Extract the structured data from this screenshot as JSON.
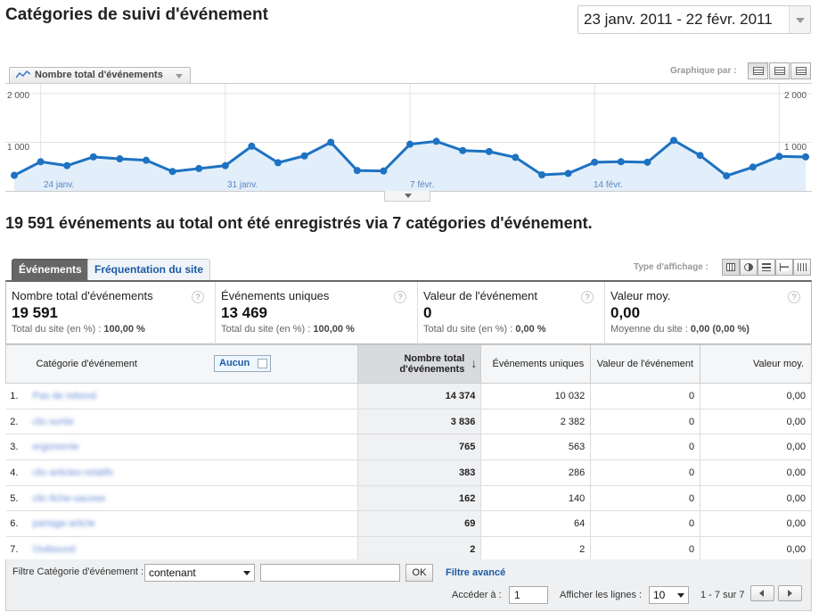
{
  "page": {
    "title": "Catégories de suivi d'événement",
    "date_range": "23 janv. 2011 - 22 févr. 2011"
  },
  "graph": {
    "metric_select": "Nombre total d'événements",
    "graph_by_label": "Graphique par :",
    "y_label_top_left": "2 000",
    "y_label_mid_left": "1 000",
    "y_label_top_right": "2 000",
    "y_label_mid_right": "1 000",
    "x_labels": [
      "24 janv.",
      "31 janv.",
      "7 févr.",
      "14 févr."
    ]
  },
  "chart_data": {
    "type": "area",
    "ylim": [
      0,
      2000
    ],
    "gridlines": [
      1000,
      2000
    ],
    "x_tick_labels": [
      "24 janv.",
      "31 janv.",
      "7 févr.",
      "14 févr."
    ],
    "values": [
      320,
      600,
      520,
      700,
      660,
      630,
      400,
      460,
      520,
      920,
      580,
      720,
      1000,
      420,
      410,
      960,
      1020,
      830,
      810,
      690,
      330,
      360,
      590,
      600,
      590,
      1040,
      730,
      310,
      490,
      710,
      700
    ],
    "color": "#1d72c2",
    "fill": "#e2eef9"
  },
  "summary_text": "19 591 événements au total ont été enregistrés via 7 catégories d'événement.",
  "tabs": [
    {
      "label": "Événements"
    },
    {
      "label": "Fréquentation du site"
    }
  ],
  "display_type_label": "Type d'affichage :",
  "metrics": [
    {
      "label": "Nombre total d'événements",
      "value": "19 591",
      "sub_label": "Total du site (en %) :",
      "sub_value": "100,00 %"
    },
    {
      "label": "Événements uniques",
      "value": "13 469",
      "sub_label": "Total du site (en %) :",
      "sub_value": "100,00 %"
    },
    {
      "label": "Valeur de l'événement",
      "value": "0",
      "sub_label": "Total du site (en %) :",
      "sub_value": "0,00 %"
    },
    {
      "label": "Valeur moy.",
      "value": "0,00",
      "sub_label": "Moyenne du site :",
      "sub_value": "0,00 (0,00 %)"
    }
  ],
  "table": {
    "headers": {
      "category": "Catégorie d'événement",
      "secondary": "Aucun",
      "total": "Nombre total d'événements",
      "unique": "Événements uniques",
      "value": "Valeur de l'événement",
      "avg": "Valeur moy."
    },
    "rows": [
      {
        "idx": "1.",
        "cat": "Pas de rebond",
        "total": "14 374",
        "unique": "10 032",
        "value": "0",
        "avg": "0,00"
      },
      {
        "idx": "2.",
        "cat": "clic-sortie",
        "total": "3 836",
        "unique": "2 382",
        "value": "0",
        "avg": "0,00"
      },
      {
        "idx": "3.",
        "cat": "ergonomie",
        "total": "765",
        "unique": "563",
        "value": "0",
        "avg": "0,00"
      },
      {
        "idx": "4.",
        "cat": "clic-articles-relatifs",
        "total": "383",
        "unique": "286",
        "value": "0",
        "avg": "0,00"
      },
      {
        "idx": "5.",
        "cat": "clic-fiche-sauvee",
        "total": "162",
        "unique": "140",
        "value": "0",
        "avg": "0,00"
      },
      {
        "idx": "6.",
        "cat": "partage-article",
        "total": "69",
        "unique": "64",
        "value": "0",
        "avg": "0,00"
      },
      {
        "idx": "7.",
        "cat": "Outbound",
        "total": "2",
        "unique": "2",
        "value": "0",
        "avg": "0,00"
      }
    ]
  },
  "footer": {
    "filter_label": "Filtre Catégorie d'événement :",
    "filter_mode": "contenant",
    "filter_value": "",
    "ok_label": "OK",
    "advanced_label": "Filtre avancé",
    "goto_label": "Accéder à :",
    "goto_value": "1",
    "rows_label": "Afficher les lignes :",
    "rows_value": "10",
    "pager_text": "1 - 7 sur 7"
  }
}
